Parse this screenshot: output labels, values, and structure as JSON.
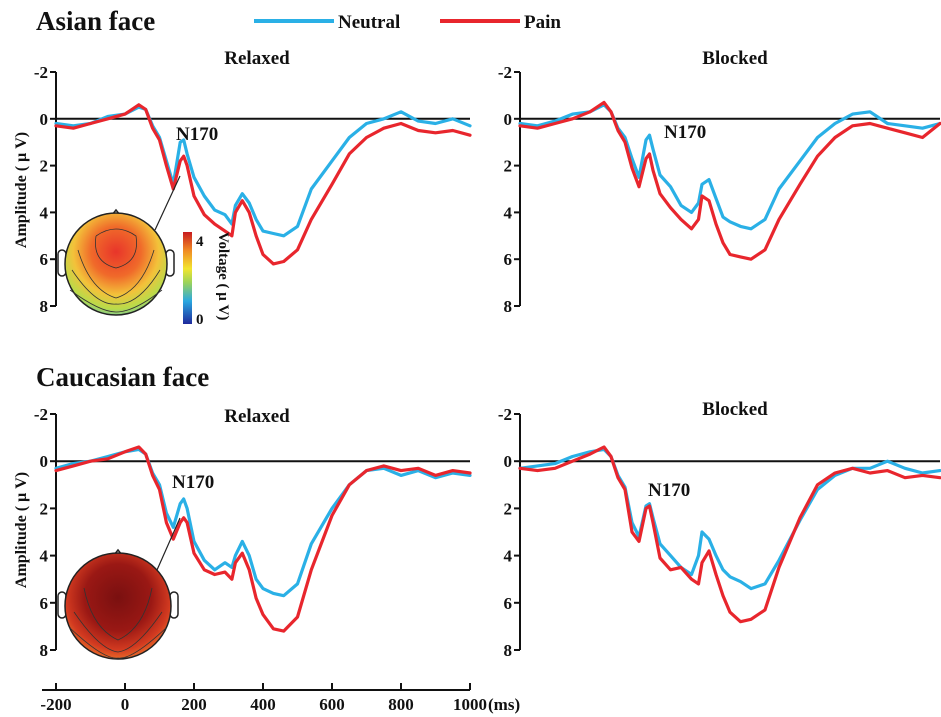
{
  "legend": {
    "items": [
      {
        "label": "Neutral",
        "color": "#2ab0e6"
      },
      {
        "label": "Pain",
        "color": "#e8262d"
      }
    ]
  },
  "sections": [
    {
      "title": "Asian face"
    },
    {
      "title": "Caucasian face"
    }
  ],
  "axes": {
    "ylabel": "Amplitude ( μ V)",
    "xunit": "(ms)",
    "y_ticks": [
      "-2",
      "0",
      "2",
      "4",
      "6",
      "8"
    ],
    "x_ticks": [
      "-200",
      "0",
      "200",
      "400",
      "600",
      "800",
      "1000"
    ]
  },
  "colorbar": {
    "label": "Voltage ( μ V)",
    "max_label": "4",
    "min_label": "0"
  },
  "chart_data": [
    {
      "type": "line",
      "title": "Relaxed",
      "section": "Asian face",
      "annotation": "N170",
      "xlim": [
        -200,
        1000
      ],
      "ylim": [
        -2,
        8
      ],
      "y_inverted": true,
      "x": [
        -200,
        -150,
        -100,
        -50,
        0,
        40,
        60,
        80,
        100,
        120,
        140,
        160,
        170,
        180,
        200,
        230,
        260,
        290,
        310,
        320,
        340,
        360,
        380,
        400,
        430,
        460,
        500,
        540,
        600,
        650,
        700,
        750,
        800,
        850,
        900,
        950,
        1000
      ],
      "series": [
        {
          "name": "Neutral",
          "color": "#2ab0e6",
          "values": [
            0.2,
            0.3,
            0.2,
            -0.1,
            -0.2,
            -0.5,
            -0.4,
            0.3,
            0.8,
            1.8,
            2.8,
            1.0,
            0.9,
            1.5,
            2.5,
            3.3,
            3.9,
            4.1,
            4.5,
            3.7,
            3.2,
            3.6,
            4.3,
            4.8,
            4.9,
            5.0,
            4.6,
            3.0,
            1.8,
            0.8,
            0.2,
            0,
            -0.3,
            0.1,
            0.2,
            0,
            0.3
          ]
        },
        {
          "name": "Pain",
          "color": "#e8262d",
          "values": [
            0.3,
            0.4,
            0.2,
            0,
            -0.2,
            -0.6,
            -0.4,
            0.4,
            0.9,
            2.0,
            3.0,
            1.8,
            1.6,
            2.0,
            3.3,
            4.1,
            4.5,
            4.8,
            5.0,
            4.0,
            3.5,
            4.0,
            5.0,
            5.8,
            6.2,
            6.1,
            5.6,
            4.3,
            2.8,
            1.5,
            0.8,
            0.4,
            0.2,
            0.5,
            0.6,
            0.5,
            0.7
          ]
        }
      ]
    },
    {
      "type": "line",
      "title": "Blocked",
      "section": "Asian face",
      "annotation": "N170",
      "xlim": [
        -200,
        1000
      ],
      "ylim": [
        -2,
        8
      ],
      "y_inverted": true,
      "x": [
        -200,
        -150,
        -100,
        -50,
        0,
        40,
        60,
        80,
        100,
        120,
        140,
        160,
        170,
        180,
        200,
        230,
        260,
        290,
        310,
        320,
        340,
        360,
        380,
        400,
        430,
        460,
        500,
        540,
        600,
        650,
        700,
        750,
        800,
        850,
        900,
        950,
        1000
      ],
      "series": [
        {
          "name": "Neutral",
          "color": "#2ab0e6",
          "values": [
            0.2,
            0.3,
            0.1,
            -0.2,
            -0.3,
            -0.6,
            -0.3,
            0.4,
            0.8,
            1.7,
            2.5,
            0.9,
            0.7,
            1.3,
            2.4,
            2.9,
            3.7,
            4.0,
            3.6,
            2.8,
            2.6,
            3.4,
            4.2,
            4.4,
            4.6,
            4.7,
            4.3,
            3.0,
            1.8,
            0.8,
            0.2,
            -0.2,
            -0.3,
            0.2,
            0.3,
            0.4,
            0.2
          ]
        },
        {
          "name": "Pain",
          "color": "#e8262d",
          "values": [
            0.3,
            0.4,
            0.2,
            0,
            -0.3,
            -0.7,
            -0.3,
            0.5,
            1.0,
            2.1,
            2.9,
            1.7,
            1.5,
            2.2,
            3.2,
            3.8,
            4.3,
            4.7,
            4.3,
            3.3,
            3.5,
            4.5,
            5.3,
            5.8,
            5.9,
            6.0,
            5.6,
            4.3,
            2.8,
            1.6,
            0.8,
            0.3,
            0.2,
            0.4,
            0.6,
            0.8,
            0.2
          ]
        }
      ]
    },
    {
      "type": "line",
      "title": "Relaxed",
      "section": "Caucasian face",
      "annotation": "N170",
      "xlim": [
        -200,
        1000
      ],
      "ylim": [
        -2,
        8
      ],
      "y_inverted": true,
      "x": [
        -200,
        -150,
        -100,
        -50,
        0,
        40,
        60,
        80,
        100,
        120,
        140,
        160,
        170,
        180,
        200,
        230,
        260,
        290,
        310,
        320,
        340,
        360,
        380,
        400,
        430,
        460,
        500,
        540,
        600,
        650,
        700,
        750,
        800,
        850,
        900,
        950,
        1000
      ],
      "series": [
        {
          "name": "Neutral",
          "color": "#2ab0e6",
          "values": [
            0.3,
            0.1,
            0,
            -0.2,
            -0.4,
            -0.5,
            -0.3,
            0.5,
            1.0,
            2.2,
            2.8,
            1.8,
            1.6,
            2.0,
            3.4,
            4.2,
            4.6,
            4.3,
            4.5,
            4.0,
            3.4,
            4.0,
            5.0,
            5.4,
            5.6,
            5.7,
            5.2,
            3.5,
            2.0,
            1.0,
            0.4,
            0.3,
            0.6,
            0.4,
            0.7,
            0.5,
            0.6
          ]
        },
        {
          "name": "Pain",
          "color": "#e8262d",
          "values": [
            0.4,
            0.2,
            0,
            -0.1,
            -0.4,
            -0.6,
            -0.3,
            0.6,
            1.2,
            2.6,
            3.3,
            2.6,
            2.4,
            2.6,
            3.9,
            4.6,
            4.8,
            4.7,
            5.0,
            4.3,
            3.9,
            4.6,
            5.8,
            6.5,
            7.1,
            7.2,
            6.6,
            4.6,
            2.3,
            1.0,
            0.4,
            0.2,
            0.4,
            0.3,
            0.6,
            0.4,
            0.5
          ]
        }
      ]
    },
    {
      "type": "line",
      "title": "Blocked",
      "section": "Caucasian face",
      "annotation": "N170",
      "xlim": [
        -200,
        1000
      ],
      "ylim": [
        -2,
        8
      ],
      "y_inverted": true,
      "x": [
        -200,
        -150,
        -100,
        -50,
        0,
        40,
        60,
        80,
        100,
        120,
        140,
        160,
        170,
        180,
        200,
        230,
        260,
        290,
        310,
        320,
        340,
        360,
        380,
        400,
        430,
        460,
        500,
        540,
        600,
        650,
        700,
        750,
        800,
        850,
        900,
        950,
        1000
      ],
      "series": [
        {
          "name": "Neutral",
          "color": "#2ab0e6",
          "values": [
            0.3,
            0.2,
            0.1,
            -0.2,
            -0.4,
            -0.5,
            -0.2,
            0.6,
            1.1,
            2.6,
            3.2,
            1.9,
            1.8,
            2.4,
            3.5,
            4.0,
            4.5,
            4.8,
            4.0,
            3.0,
            3.3,
            4.0,
            4.6,
            4.9,
            5.1,
            5.4,
            5.2,
            4.2,
            2.5,
            1.2,
            0.6,
            0.3,
            0.3,
            0,
            0.3,
            0.5,
            0.4
          ]
        },
        {
          "name": "Pain",
          "color": "#e8262d",
          "values": [
            0.3,
            0.4,
            0.3,
            0,
            -0.3,
            -0.6,
            -0.2,
            0.7,
            1.2,
            3.0,
            3.4,
            2.0,
            1.9,
            2.6,
            4.1,
            4.6,
            4.5,
            5.0,
            5.2,
            4.3,
            3.8,
            4.8,
            5.7,
            6.4,
            6.8,
            6.7,
            6.3,
            4.5,
            2.4,
            1.0,
            0.5,
            0.3,
            0.5,
            0.4,
            0.7,
            0.6,
            0.7
          ]
        }
      ]
    }
  ]
}
